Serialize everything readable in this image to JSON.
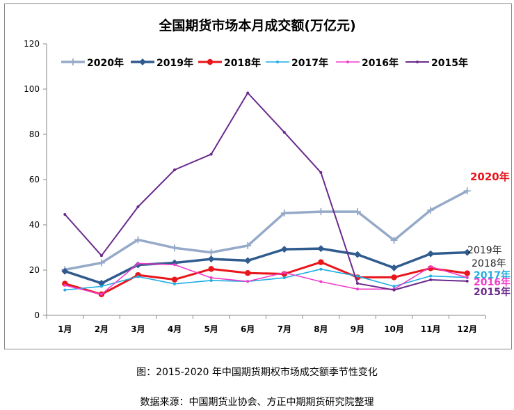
{
  "chart_data": {
    "type": "line",
    "title": "全国期货市场本月成交额(万亿元)",
    "categories": [
      "1月",
      "2月",
      "3月",
      "4月",
      "5月",
      "6月",
      "7月",
      "8月",
      "9月",
      "10月",
      "11月",
      "12月"
    ],
    "ylim": [
      0,
      120
    ],
    "yticks": [
      0,
      20,
      40,
      60,
      80,
      100,
      120
    ],
    "grid": false,
    "legend_position": "top",
    "series": [
      {
        "name": "2020年",
        "color": "#95A9C8",
        "marker": "plus",
        "width": 3.5,
        "end_label": "2020年",
        "end_label_color": "#E8151A",
        "values": [
          20.2,
          23.2,
          33.4,
          29.8,
          27.8,
          30.8,
          45.2,
          45.8,
          45.8,
          33.2,
          46.5,
          55.0
        ]
      },
      {
        "name": "2019年",
        "color": "#2F5B8E",
        "marker": "diamond",
        "width": 3.5,
        "end_label": "2019年",
        "end_label_color": "#222222",
        "values": [
          19.5,
          14.2,
          22.3,
          23.2,
          24.9,
          24.2,
          29.2,
          29.5,
          26.9,
          21.0,
          27.2,
          27.8
        ]
      },
      {
        "name": "2018年",
        "color": "#E8151A",
        "marker": "circle",
        "width": 3,
        "end_label": "2018年",
        "end_label_color": "#222222",
        "values": [
          14.0,
          9.3,
          17.8,
          15.8,
          20.5,
          18.7,
          18.3,
          23.5,
          16.8,
          16.8,
          20.8,
          18.6
        ]
      },
      {
        "name": "2017年",
        "color": "#1EADE3",
        "marker": "dot",
        "width": 1.6,
        "end_label": "2017年",
        "end_label_color": "#1EADE3",
        "values": [
          11.2,
          12.8,
          17.1,
          13.9,
          15.4,
          15.0,
          16.6,
          20.4,
          17.3,
          12.8,
          17.4,
          16.7
        ]
      },
      {
        "name": "2016年",
        "color": "#F03CC8",
        "marker": "dot",
        "width": 1.6,
        "end_label": "2016年",
        "end_label_color": "#F03CC8",
        "values": [
          13.3,
          9.3,
          22.9,
          22.4,
          16.6,
          15.0,
          18.9,
          14.9,
          11.6,
          11.6,
          21.5,
          16.7
        ]
      },
      {
        "name": "2015年",
        "color": "#6A2A8C",
        "marker": "dot",
        "width": 2,
        "end_label": "2015年",
        "end_label_color": "#6A2A8C",
        "values": [
          44.6,
          26.4,
          48.0,
          64.3,
          71.2,
          98.3,
          80.9,
          63.1,
          14.1,
          11.2,
          15.7,
          15.1
        ]
      }
    ]
  },
  "captions": {
    "line1": "图：2015-2020 年中国期货期权市场成交额季节性变化",
    "line2": "数据来源：中国期货业协会、方正中期期货研究院整理"
  }
}
